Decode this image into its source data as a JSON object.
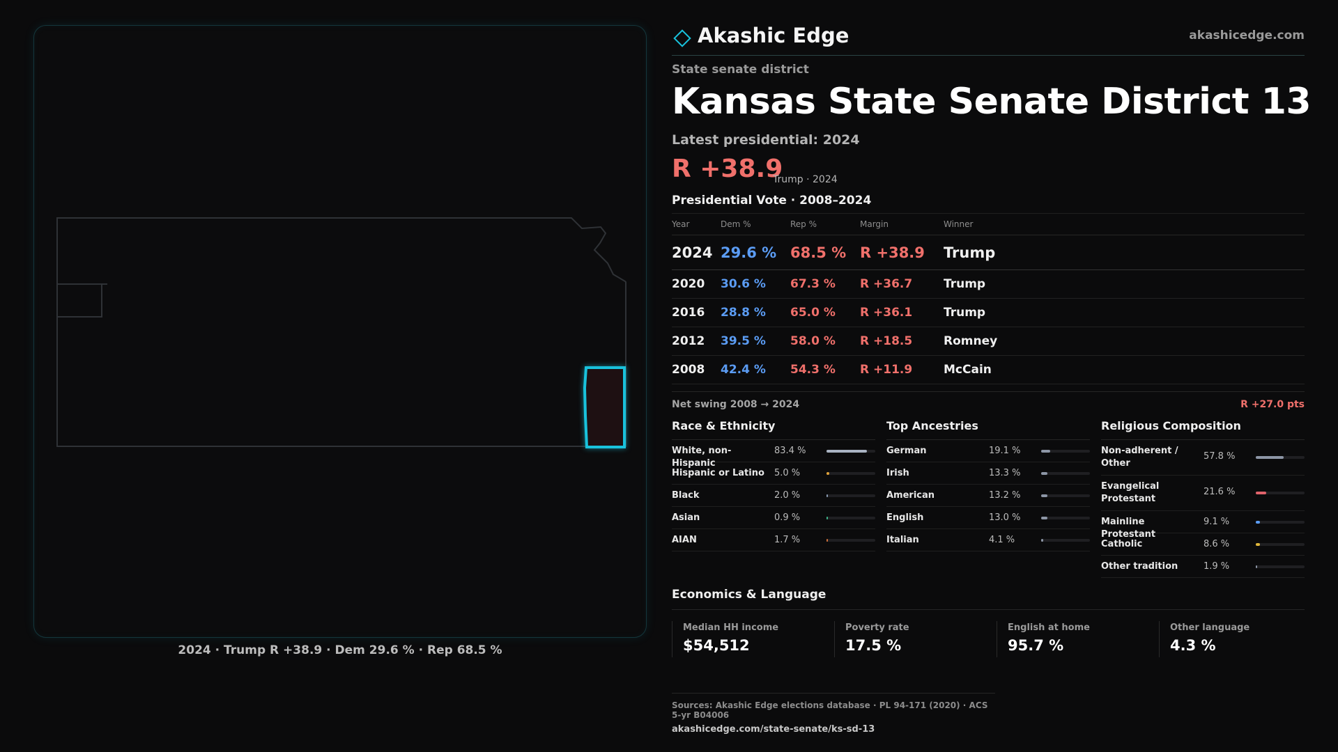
{
  "brand": {
    "name": "Akashic Edge",
    "url": "akashicedge.com"
  },
  "district": {
    "type": "State senate district",
    "title": "Kansas State Senate District 13",
    "latest_label": "Latest presidential: 2024",
    "margin": "R +38.9",
    "margin_detail": "Trump · 2024"
  },
  "map": {
    "caption": "2024 · Trump R +38.9 · Dem 29.6 % · Rep 68.5 %"
  },
  "vote_table": {
    "title": "Presidential Vote · 2008–2024",
    "headers": [
      "Year",
      "Dem %",
      "Rep %",
      "Margin",
      "Winner"
    ],
    "rows": [
      {
        "year": "2024",
        "dem": "29.6 %",
        "rep": "68.5 %",
        "margin": "R +38.9",
        "winner": "Trump"
      },
      {
        "year": "2020",
        "dem": "30.6 %",
        "rep": "67.3 %",
        "margin": "R +36.7",
        "winner": "Trump"
      },
      {
        "year": "2016",
        "dem": "28.8 %",
        "rep": "65.0 %",
        "margin": "R +36.1",
        "winner": "Trump"
      },
      {
        "year": "2012",
        "dem": "39.5 %",
        "rep": "58.0 %",
        "margin": "R +18.5",
        "winner": "Romney"
      },
      {
        "year": "2008",
        "dem": "42.4 %",
        "rep": "54.3 %",
        "margin": "R +11.9",
        "winner": "McCain"
      }
    ],
    "swing_label": "Net swing 2008 → 2024",
    "swing_value": "R +27.0 pts"
  },
  "race": {
    "title": "Race & Ethnicity",
    "items": [
      {
        "label": "White, non-Hispanic",
        "pct": "83.4 %",
        "value": 83.4,
        "color": "#a9b3c2"
      },
      {
        "label": "Hispanic or Latino",
        "pct": "5.0 %",
        "value": 5.0,
        "color": "#e0a23a"
      },
      {
        "label": "Black",
        "pct": "2.0 %",
        "value": 2.0,
        "color": "#8a9bb3"
      },
      {
        "label": "Asian",
        "pct": "0.9 %",
        "value": 0.9,
        "color": "#3fb58a"
      },
      {
        "label": "AIAN",
        "pct": "1.7 %",
        "value": 1.7,
        "color": "#d0703a"
      }
    ]
  },
  "ancestry": {
    "title": "Top Ancestries",
    "items": [
      {
        "label": "German",
        "pct": "19.1 %",
        "value": 19.1,
        "color": "#8d96a6"
      },
      {
        "label": "Irish",
        "pct": "13.3 %",
        "value": 13.3,
        "color": "#8d96a6"
      },
      {
        "label": "American",
        "pct": "13.2 %",
        "value": 13.2,
        "color": "#8d96a6"
      },
      {
        "label": "English",
        "pct": "13.0 %",
        "value": 13.0,
        "color": "#8d96a6"
      },
      {
        "label": "Italian",
        "pct": "4.1 %",
        "value": 4.1,
        "color": "#8d96a6"
      }
    ]
  },
  "religion": {
    "title": "Religious Composition",
    "items": [
      {
        "label": "Non-adherent / Other",
        "pct": "57.8 %",
        "value": 57.8,
        "color": "#8d96a6"
      },
      {
        "label": "Evangelical Protestant",
        "pct": "21.6 %",
        "value": 21.6,
        "color": "#e0636b"
      },
      {
        "label": "Mainline Protestant",
        "pct": "9.1 %",
        "value": 9.1,
        "color": "#5b9cf4"
      },
      {
        "label": "Catholic",
        "pct": "8.6 %",
        "value": 8.6,
        "color": "#e0b73a"
      },
      {
        "label": "Other tradition",
        "pct": "1.9 %",
        "value": 1.9,
        "color": "#8d96a6"
      }
    ]
  },
  "economics": {
    "title": "Economics & Language",
    "cards": [
      {
        "label": "Median HH income",
        "value": "$54,512"
      },
      {
        "label": "Poverty rate",
        "value": "17.5 %"
      },
      {
        "label": "English at home",
        "value": "95.7 %"
      },
      {
        "label": "Other language",
        "value": "4.3 %"
      }
    ]
  },
  "sources": {
    "line": "Sources: Akashic Edge elections database · PL 94-171 (2020) · ACS 5-yr B04006",
    "url": "akashicedge.com/state-senate/ks-sd-13"
  },
  "colors": {
    "dem": "#5b9cf4",
    "rep": "#f0706b",
    "accent": "#19c2dc"
  }
}
